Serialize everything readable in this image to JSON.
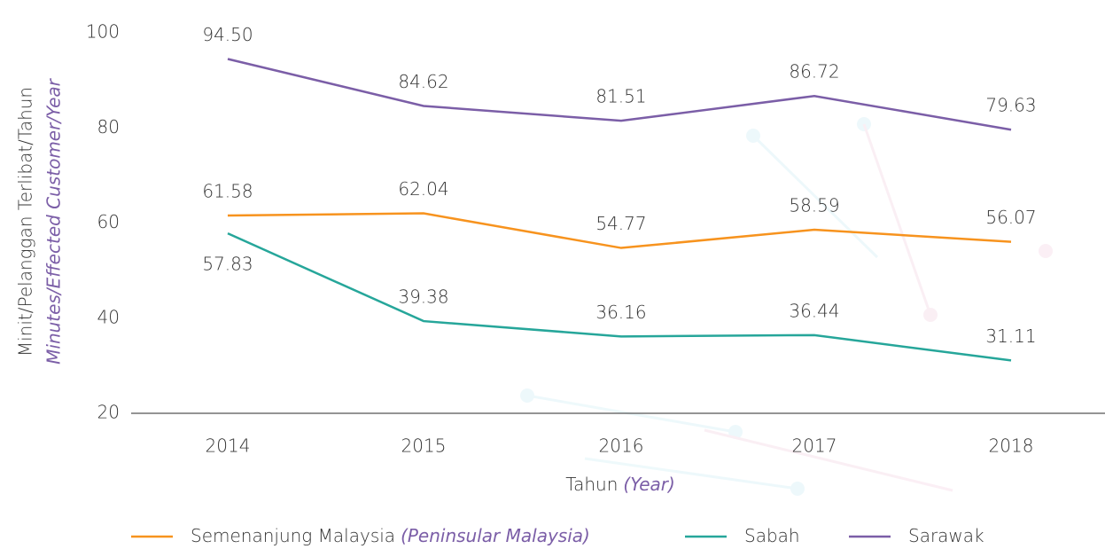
{
  "chart_data": {
    "type": "line",
    "ylabel": "Minit/Pelanggan Terlibat/Tahun",
    "ylabel_translation": "Minutes/Effected Customer/Year",
    "xlabel": "Tahun",
    "xlabel_translation": "(Year)",
    "categories": [
      "2014",
      "2015",
      "2016",
      "2017",
      "2018"
    ],
    "ylim": [
      20,
      100
    ],
    "yticks": [
      20,
      40,
      60,
      80,
      100
    ],
    "grid": false,
    "series": [
      {
        "name": "Semenanjung Malaysia",
        "name_translation": "(Peninsular Malaysia)",
        "color": "#f7931e",
        "values": [
          61.58,
          62.04,
          54.77,
          58.59,
          56.07
        ],
        "value_labels": [
          "61.58",
          "62.04",
          "54.77",
          "58.59",
          "56.07"
        ]
      },
      {
        "name": "Sabah",
        "color": "#26a69a",
        "values": [
          57.83,
          39.38,
          36.16,
          36.44,
          31.11
        ],
        "value_labels": [
          "57.83",
          "39.38",
          "36.16",
          "36.44",
          "31.11"
        ]
      },
      {
        "name": "Sarawak",
        "color": "#7b5ea7",
        "values": [
          94.5,
          84.62,
          81.51,
          86.72,
          79.63
        ],
        "value_labels": [
          "94.50",
          "84.62",
          "81.51",
          "86.72",
          "79.63"
        ]
      }
    ]
  }
}
